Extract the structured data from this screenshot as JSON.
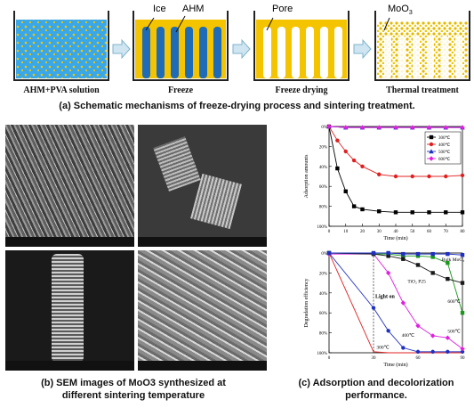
{
  "schematic": {
    "labels": {
      "ice": "Ice",
      "ahm": "AHM",
      "pore": "Pore",
      "moo3": "MoO",
      "moo3_sub": "3"
    },
    "stages": [
      "AHM+PVA solution",
      "Freeze",
      "Freeze drying",
      "Thermal treatment"
    ],
    "caption": "(a) Schematic mechanisms of freeze-drying process and sintering treatment."
  },
  "sem": {
    "caption_line1": "(b) SEM images of MoO3 synthesized at",
    "caption_line2": "different sintering temperature"
  },
  "panel_c": {
    "caption_line1": "(c) Adsorption and decolorization",
    "caption_line2": "performance."
  },
  "colors": {
    "water": "#3aa8e8",
    "ahm": "#f5c400",
    "ice": "#1e6bb8",
    "arrow": "#9ecbe0",
    "s300": "#000000",
    "s400": "#e02020",
    "s500": "#2030c0",
    "s600": "#e020e0",
    "bulk": "#1a9a1a"
  },
  "chart_data": [
    {
      "type": "line",
      "title": "",
      "xlabel": "Time (min)",
      "ylabel": "Adsorption amounts",
      "xlim": [
        0,
        80
      ],
      "ylim": [
        0,
        100
      ],
      "y_inverted": true,
      "x_ticks": [
        "0",
        "10",
        "20",
        "30",
        "40",
        "50",
        "60",
        "70",
        "80"
      ],
      "y_ticks": [
        "0%",
        "20%",
        "40%",
        "60%",
        "80%",
        "100%"
      ],
      "legend_position": "top-right",
      "series": [
        {
          "name": "300℃",
          "color": "#000000",
          "marker": "square",
          "x": [
            0,
            5,
            10,
            15,
            20,
            30,
            40,
            50,
            60,
            70,
            80
          ],
          "y": [
            0,
            42,
            65,
            80,
            83,
            85,
            86,
            86,
            86,
            86,
            86
          ]
        },
        {
          "name": "400℃",
          "color": "#e02020",
          "marker": "circle",
          "x": [
            0,
            5,
            10,
            15,
            20,
            30,
            40,
            50,
            60,
            70,
            80
          ],
          "y": [
            0,
            14,
            25,
            34,
            40,
            48,
            50,
            50,
            50,
            50,
            49
          ]
        },
        {
          "name": "500℃",
          "color": "#2030c0",
          "marker": "triangle",
          "x": [
            0,
            10,
            20,
            30,
            40,
            50,
            60,
            70,
            80
          ],
          "y": [
            0,
            1,
            1,
            1,
            1,
            1,
            1,
            1,
            1
          ]
        },
        {
          "name": "600℃",
          "color": "#e020e0",
          "marker": "diamond",
          "x": [
            0,
            10,
            20,
            30,
            40,
            50,
            60,
            70,
            80
          ],
          "y": [
            0,
            1,
            1,
            1,
            1,
            1,
            1,
            1,
            1
          ]
        }
      ]
    },
    {
      "type": "line",
      "title": "",
      "xlabel": "Time (min)",
      "ylabel": "Degradation efficiency",
      "xlim": [
        0,
        90
      ],
      "ylim": [
        0,
        100
      ],
      "y_inverted": true,
      "x_ticks": [
        "0",
        "30",
        "60",
        "90"
      ],
      "y_ticks": [
        "0%",
        "20%",
        "40%",
        "60%",
        "80%",
        "100%"
      ],
      "annotation": "Light on",
      "light_on_x": 30,
      "series": [
        {
          "name": "300℃",
          "label": "300℃",
          "color": "#e02020",
          "marker": "none",
          "x": [
            0,
            30,
            40,
            50,
            60,
            70,
            80,
            90
          ],
          "y": [
            0,
            99,
            100,
            100,
            100,
            100,
            100,
            100
          ]
        },
        {
          "name": "400℃",
          "label": "400℃",
          "color": "#2030c0",
          "marker": "circle",
          "x": [
            0,
            30,
            40,
            50,
            60,
            70,
            80,
            90
          ],
          "y": [
            0,
            55,
            78,
            95,
            99,
            99,
            99,
            99
          ]
        },
        {
          "name": "500℃",
          "label": "500℃",
          "color": "#e020e0",
          "marker": "diamond",
          "x": [
            0,
            30,
            40,
            50,
            60,
            70,
            80,
            90
          ],
          "y": [
            1,
            1,
            20,
            50,
            73,
            83,
            85,
            96
          ]
        },
        {
          "name": "600℃",
          "label": "600℃",
          "color": "#1a9a1a",
          "marker": "square",
          "x": [
            0,
            30,
            40,
            50,
            60,
            70,
            80,
            90
          ],
          "y": [
            0,
            1,
            1,
            3,
            3,
            4,
            10,
            60
          ]
        },
        {
          "name": "TiO₂ P25",
          "label": "TiO₂ P25",
          "color": "#1a1a1a",
          "marker": "square",
          "x": [
            0,
            30,
            40,
            50,
            60,
            70,
            80,
            90
          ],
          "y": [
            0,
            1,
            3,
            6,
            12,
            20,
            26,
            30
          ]
        },
        {
          "name": "Bulk MoO₃",
          "label": "Bulk MoO₃",
          "color": "#2030c0",
          "marker": "square",
          "x": [
            0,
            30,
            40,
            50,
            60,
            70,
            80,
            90
          ],
          "y": [
            0,
            0,
            0,
            1,
            1,
            1,
            1,
            2
          ]
        }
      ]
    }
  ]
}
